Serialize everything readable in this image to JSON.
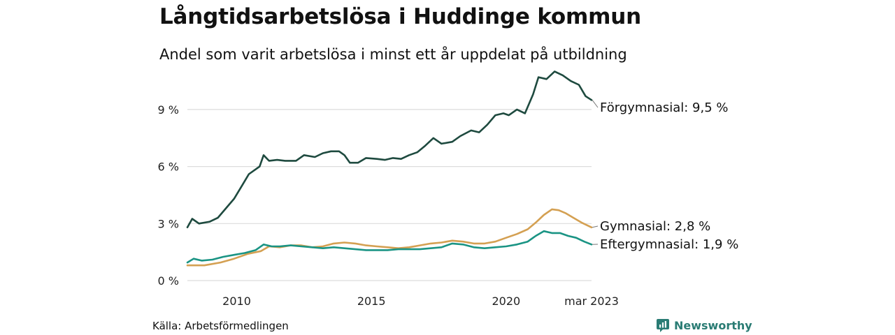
{
  "title": "Långtidsarbetslösa i Huddinge kommun",
  "subtitle": "Andel som varit arbetslösa i minst ett år uppdelat på utbildning",
  "source": "Källa: Arbetsförmedlingen",
  "brand": {
    "name": "Newsworthy",
    "icon": "newsworthy-logo-icon",
    "color": "#2a7c74"
  },
  "chart_data": {
    "type": "line",
    "x_ticks": [
      "2010",
      "2015",
      "2020",
      "mar 2023"
    ],
    "x_tick_positions": [
      2010.0,
      2015.0,
      2020.0,
      2023.17
    ],
    "y_ticks": [
      "0 %",
      "3 %",
      "6 %",
      "9 %"
    ],
    "y_tick_values": [
      0,
      3,
      6,
      9
    ],
    "ylim": [
      0,
      11.2
    ],
    "xlim": [
      2008.17,
      2023.17
    ],
    "grid": true,
    "series": [
      {
        "name": "Förgymnasial",
        "end_label": "Förgymnasial: 9,5 %",
        "color": "#1e4a3f",
        "points": [
          [
            2008.17,
            2.8
          ],
          [
            2008.35,
            3.25
          ],
          [
            2008.6,
            3.0
          ],
          [
            2009.0,
            3.1
          ],
          [
            2009.3,
            3.3
          ],
          [
            2009.6,
            3.8
          ],
          [
            2009.9,
            4.3
          ],
          [
            2010.2,
            5.0
          ],
          [
            2010.45,
            5.6
          ],
          [
            2010.7,
            5.85
          ],
          [
            2010.85,
            6.0
          ],
          [
            2011.0,
            6.6
          ],
          [
            2011.2,
            6.3
          ],
          [
            2011.5,
            6.35
          ],
          [
            2011.8,
            6.3
          ],
          [
            2012.2,
            6.3
          ],
          [
            2012.5,
            6.6
          ],
          [
            2012.9,
            6.5
          ],
          [
            2013.2,
            6.7
          ],
          [
            2013.5,
            6.8
          ],
          [
            2013.8,
            6.8
          ],
          [
            2014.0,
            6.6
          ],
          [
            2014.2,
            6.2
          ],
          [
            2014.5,
            6.2
          ],
          [
            2014.8,
            6.45
          ],
          [
            2015.2,
            6.4
          ],
          [
            2015.5,
            6.35
          ],
          [
            2015.8,
            6.45
          ],
          [
            2016.1,
            6.4
          ],
          [
            2016.4,
            6.6
          ],
          [
            2016.7,
            6.75
          ],
          [
            2017.0,
            7.1
          ],
          [
            2017.3,
            7.5
          ],
          [
            2017.6,
            7.2
          ],
          [
            2018.0,
            7.3
          ],
          [
            2018.3,
            7.6
          ],
          [
            2018.7,
            7.9
          ],
          [
            2019.0,
            7.8
          ],
          [
            2019.3,
            8.2
          ],
          [
            2019.6,
            8.7
          ],
          [
            2019.9,
            8.8
          ],
          [
            2020.1,
            8.7
          ],
          [
            2020.4,
            9.0
          ],
          [
            2020.7,
            8.8
          ],
          [
            2021.0,
            9.8
          ],
          [
            2021.2,
            10.7
          ],
          [
            2021.5,
            10.6
          ],
          [
            2021.8,
            11.0
          ],
          [
            2022.1,
            10.8
          ],
          [
            2022.4,
            10.5
          ],
          [
            2022.7,
            10.3
          ],
          [
            2022.95,
            9.7
          ],
          [
            2023.17,
            9.5
          ]
        ]
      },
      {
        "name": "Gymnasial",
        "end_label": "Gymnasial: 2,8 %",
        "color": "#d4a052",
        "points": [
          [
            2008.17,
            0.8
          ],
          [
            2008.8,
            0.8
          ],
          [
            2009.4,
            0.95
          ],
          [
            2009.9,
            1.15
          ],
          [
            2010.4,
            1.4
          ],
          [
            2010.9,
            1.55
          ],
          [
            2011.2,
            1.8
          ],
          [
            2011.6,
            1.75
          ],
          [
            2012.0,
            1.85
          ],
          [
            2012.4,
            1.85
          ],
          [
            2012.8,
            1.75
          ],
          [
            2013.2,
            1.8
          ],
          [
            2013.6,
            1.95
          ],
          [
            2014.0,
            2.0
          ],
          [
            2014.4,
            1.95
          ],
          [
            2014.8,
            1.85
          ],
          [
            2015.2,
            1.8
          ],
          [
            2015.6,
            1.75
          ],
          [
            2016.0,
            1.7
          ],
          [
            2016.4,
            1.75
          ],
          [
            2016.8,
            1.85
          ],
          [
            2017.2,
            1.95
          ],
          [
            2017.6,
            2.0
          ],
          [
            2018.0,
            2.1
          ],
          [
            2018.4,
            2.05
          ],
          [
            2018.8,
            1.95
          ],
          [
            2019.2,
            1.95
          ],
          [
            2019.6,
            2.05
          ],
          [
            2020.0,
            2.25
          ],
          [
            2020.4,
            2.45
          ],
          [
            2020.8,
            2.7
          ],
          [
            2021.1,
            3.05
          ],
          [
            2021.4,
            3.45
          ],
          [
            2021.7,
            3.75
          ],
          [
            2021.95,
            3.7
          ],
          [
            2022.2,
            3.55
          ],
          [
            2022.5,
            3.3
          ],
          [
            2022.8,
            3.05
          ],
          [
            2023.17,
            2.8
          ]
        ]
      },
      {
        "name": "Eftergymnasial",
        "end_label": "Eftergymnasial: 1,9 %",
        "color": "#1a9484",
        "points": [
          [
            2008.17,
            0.95
          ],
          [
            2008.4,
            1.15
          ],
          [
            2008.7,
            1.05
          ],
          [
            2009.1,
            1.1
          ],
          [
            2009.5,
            1.25
          ],
          [
            2009.9,
            1.35
          ],
          [
            2010.3,
            1.45
          ],
          [
            2010.7,
            1.6
          ],
          [
            2011.0,
            1.9
          ],
          [
            2011.3,
            1.8
          ],
          [
            2011.6,
            1.8
          ],
          [
            2012.0,
            1.85
          ],
          [
            2012.4,
            1.8
          ],
          [
            2012.8,
            1.75
          ],
          [
            2013.2,
            1.7
          ],
          [
            2013.6,
            1.75
          ],
          [
            2014.0,
            1.7
          ],
          [
            2014.4,
            1.65
          ],
          [
            2014.8,
            1.6
          ],
          [
            2015.2,
            1.6
          ],
          [
            2015.6,
            1.6
          ],
          [
            2016.0,
            1.65
          ],
          [
            2016.4,
            1.65
          ],
          [
            2016.8,
            1.65
          ],
          [
            2017.2,
            1.7
          ],
          [
            2017.6,
            1.75
          ],
          [
            2018.0,
            1.95
          ],
          [
            2018.4,
            1.9
          ],
          [
            2018.8,
            1.75
          ],
          [
            2019.2,
            1.7
          ],
          [
            2019.6,
            1.75
          ],
          [
            2020.0,
            1.8
          ],
          [
            2020.4,
            1.9
          ],
          [
            2020.8,
            2.05
          ],
          [
            2021.1,
            2.35
          ],
          [
            2021.4,
            2.6
          ],
          [
            2021.7,
            2.5
          ],
          [
            2022.0,
            2.5
          ],
          [
            2022.3,
            2.35
          ],
          [
            2022.6,
            2.25
          ],
          [
            2022.9,
            2.05
          ],
          [
            2023.17,
            1.9
          ]
        ]
      }
    ]
  }
}
